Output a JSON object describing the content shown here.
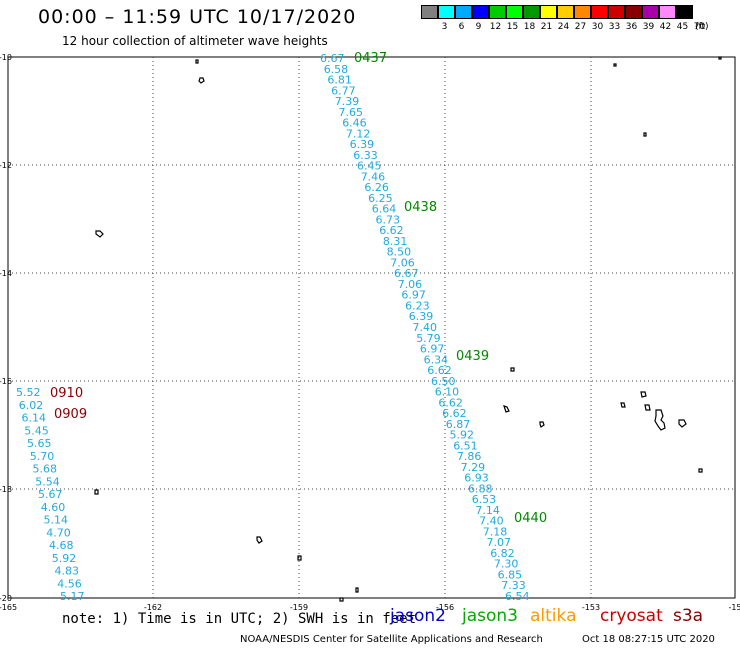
{
  "header": {
    "title": "00:00 – 11:59 UTC 10/17/2020",
    "subtitle": "12 hour collection of altimeter wave heights"
  },
  "scale": {
    "unit": "(ft)",
    "colors": [
      "#808080",
      "#00ffff",
      "#00aaff",
      "#0000ff",
      "#00cc00",
      "#00ff00",
      "#009900",
      "#ffff00",
      "#ffcc00",
      "#ff8800",
      "#ff0000",
      "#cc0000",
      "#880000",
      "#aa00aa",
      "#ff88ff",
      "#000000"
    ],
    "labels": [
      "3",
      "6",
      "9",
      "12",
      "15",
      "18",
      "21",
      "24",
      "27",
      "30",
      "33",
      "36",
      "39",
      "42",
      "45",
      "70"
    ]
  },
  "axes": {
    "lat_labels": [
      "-10",
      "-12",
      "-14",
      "-16",
      "-18",
      "-20"
    ],
    "lon_labels": [
      "-165",
      "-162",
      "-159",
      "-156",
      "-153",
      "-15"
    ]
  },
  "colors": {
    "swh": "#22aadd",
    "jason3_time": "#008800",
    "s3a_time": "#880000",
    "jason2": "#0000cc",
    "jason3": "#00aa00",
    "altika": "#ff9900",
    "cryosat": "#cc0000",
    "s3a": "#880000"
  },
  "tracks": {
    "jason3": {
      "values": [
        "6.67",
        "6.58",
        "6.81",
        "6.77",
        "7.39",
        "7.65",
        "6.46",
        "7.12",
        "6.39",
        "6.33",
        "6.45",
        "7.46",
        "6.26",
        "6.25",
        "6.64",
        "6.73",
        "6.62",
        "8.31",
        "8.50",
        "7.06",
        "6.67",
        "7.06",
        "6.97",
        "6.23",
        "6.39",
        "7.40",
        "5.79",
        "6.97",
        "6.34",
        "6.62",
        "6.50",
        "6.10",
        "6.62",
        "6.62",
        "6.87",
        "5.92",
        "6.51",
        "7.86",
        "7.29",
        "6.93",
        "6.88",
        "6.53",
        "7.14",
        "7.40",
        "7.18",
        "7.07",
        "6.82",
        "7.30",
        "6.85",
        "7.33",
        "6.54"
      ],
      "times": [
        "0437",
        "0438",
        "0439",
        "0440"
      ]
    },
    "s3a": {
      "values": [
        "5.52",
        "6.02",
        "6.14",
        "5.45",
        "5.65",
        "5.70",
        "5.68",
        "5.54",
        "5.67",
        "4.60",
        "5.14",
        "4.70",
        "4.68",
        "5.92",
        "4.83",
        "4.56",
        "5.17"
      ],
      "times": [
        "0910",
        "0909"
      ]
    }
  },
  "footer": {
    "note": "note: 1) Time is in UTC; 2) SWH is in feet",
    "missions": [
      "jason2",
      "jason3",
      "altika",
      "cryosat",
      "s3a"
    ],
    "credit": "NOAA/NESDIS Center for Satellite Applications and Research",
    "generated": "Oct 18 08:27:15 UTC 2020"
  }
}
